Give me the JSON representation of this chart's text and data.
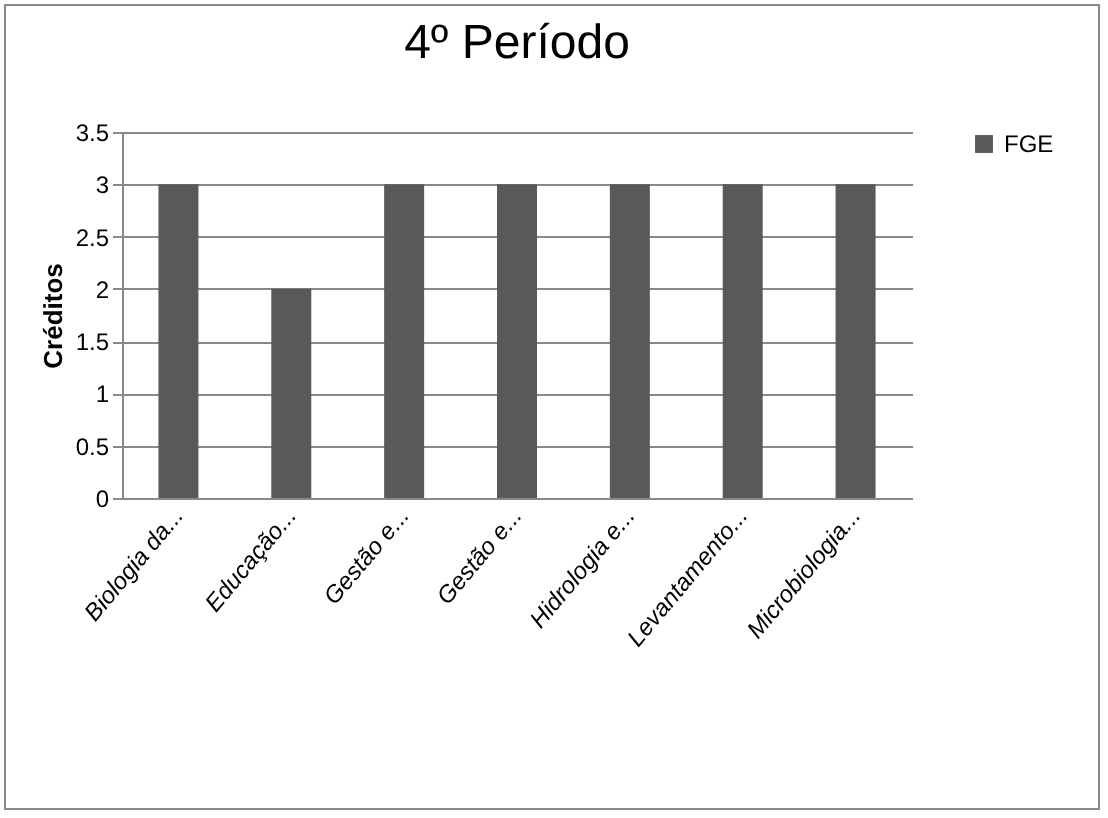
{
  "chart_data": {
    "type": "bar",
    "title": "4º Período",
    "ylabel": "Créditos",
    "categories": [
      "Biologia da...",
      "Educação...",
      "Gestão e...",
      "Gestão e...",
      "Hidrologia e...",
      "Levantamento...",
      "Microbiologia..."
    ],
    "series": [
      {
        "name": "FGE",
        "color": "#595959",
        "values": [
          3,
          2,
          3,
          3,
          3,
          3,
          3
        ]
      }
    ],
    "ylim": [
      0,
      3.5
    ],
    "yticks": [
      0,
      0.5,
      1,
      1.5,
      2,
      2.5,
      3,
      3.5
    ],
    "grid": "y",
    "legend": "right"
  }
}
